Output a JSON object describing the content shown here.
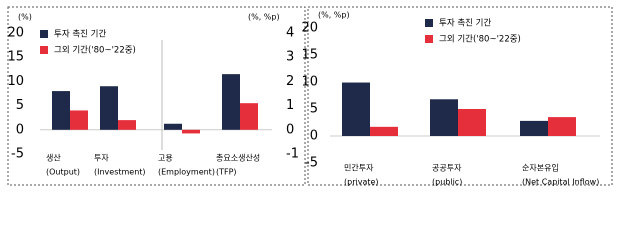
{
  "chart_data": [
    {
      "type": "bar",
      "y_unit": "(%)",
      "y2_unit": "(%, %p)",
      "categories": [
        [
          "생산",
          "(Output)"
        ],
        [
          "투자",
          "(Investment)"
        ],
        [
          "고용",
          "(Employment)"
        ],
        [
          "총요소생산성",
          "(TFP)"
        ]
      ],
      "category_axis": [
        "y",
        "y",
        "y2",
        "y2"
      ],
      "series": [
        {
          "name": "투자 촉진 기간",
          "color": "#1f2a4a",
          "values": [
            8,
            9,
            0.25,
            2.3
          ]
        },
        {
          "name": "그외 기간('80~'22중)",
          "color": "#e5303b",
          "values": [
            4,
            2,
            -0.15,
            1.1
          ]
        }
      ],
      "ylim": [
        -5,
        20
      ],
      "yticks": [
        -5,
        0,
        5,
        10,
        15,
        20
      ],
      "y2lim": [
        -1,
        4
      ],
      "y2ticks": [
        -1,
        0,
        1,
        2,
        3,
        4
      ]
    },
    {
      "type": "bar",
      "y_unit": "(%, %p)",
      "categories": [
        [
          "민간투자",
          "(private)"
        ],
        [
          "공공투자",
          "(public)"
        ],
        [
          "순자본유입",
          "(Net Capital Inflow)"
        ]
      ],
      "series": [
        {
          "name": "투자 촉진 기간",
          "color": "#1f2a4a",
          "values": [
            9.9,
            6.8,
            2.8
          ]
        },
        {
          "name": "그외 기간('80~'22중)",
          "color": "#e5303b",
          "values": [
            1.7,
            5,
            3.5
          ]
        }
      ],
      "ylim": [
        -5,
        20
      ],
      "yticks": [
        -5,
        0,
        5,
        10,
        15,
        20
      ]
    }
  ]
}
